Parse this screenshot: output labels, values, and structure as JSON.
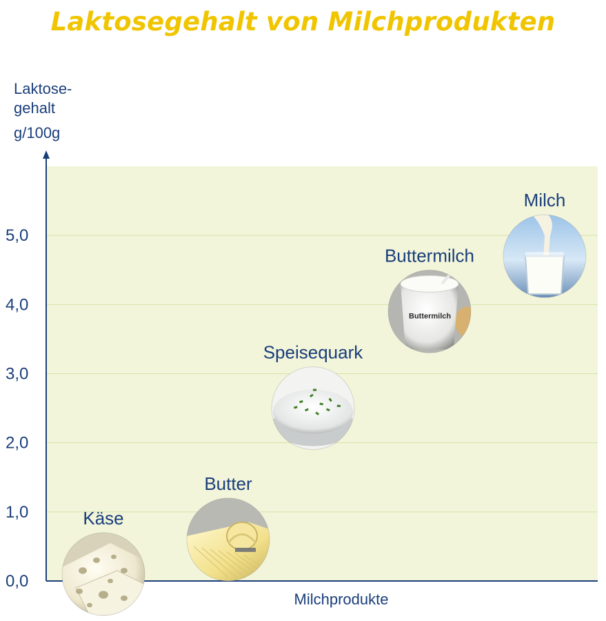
{
  "title": "Laktosegehalt von Milchprodukten",
  "y_axis_lines": [
    "Laktose-",
    "gehalt",
    "g/100g"
  ],
  "colors": {
    "title": "#f0c500",
    "text": "#1a3e7a",
    "plot_background": "#f2f5da",
    "gridline": "#d6e3a6",
    "axis": "#1a3e7a"
  },
  "chart_data": {
    "type": "scatter",
    "title": "Laktosegehalt von Milchprodukten",
    "xlabel": "Milchprodukte",
    "ylabel": "Laktosegehalt g/100g",
    "ylim": [
      0,
      6
    ],
    "y_ticks": [
      "0,0",
      "1,0",
      "2,0",
      "3,0",
      "4,0",
      "5,0"
    ],
    "grid": true,
    "points": [
      {
        "label": "Käse",
        "value": 0.1,
        "icon": "cheese-photo"
      },
      {
        "label": "Butter",
        "value": 0.6,
        "icon": "butter-photo"
      },
      {
        "label": "Speisequark",
        "value": 2.5,
        "icon": "quark-photo"
      },
      {
        "label": "Buttermilch",
        "value": 3.9,
        "icon": "buttermilk-photo",
        "icon_text": "Buttermilch"
      },
      {
        "label": "Milch",
        "value": 4.7,
        "icon": "milk-photo"
      }
    ]
  }
}
